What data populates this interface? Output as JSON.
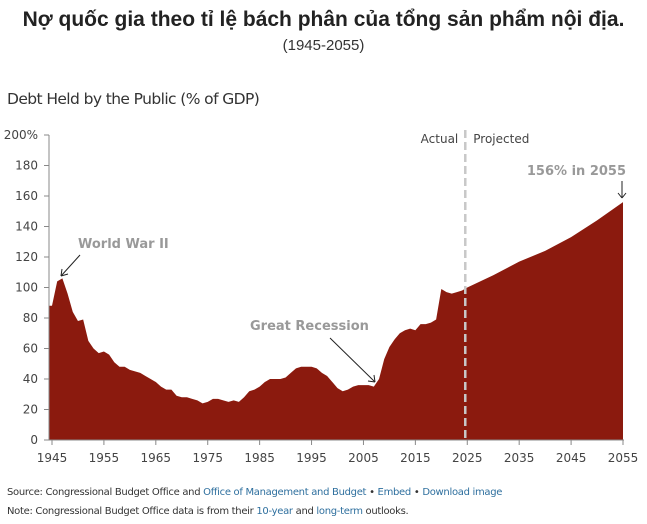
{
  "header": {
    "title": "Nợ quốc gia theo tỉ lệ bách phân của tổng sản phẩm nội địa.",
    "subtitle": "(1945-2055)"
  },
  "chart_data": {
    "type": "area",
    "title": "Debt Held by the Public (% of GDP)",
    "ylim": [
      0,
      200
    ],
    "xlim": [
      1945,
      2055
    ],
    "y_ticks": [
      "0",
      "20",
      "40",
      "60",
      "80",
      "100",
      "120",
      "140",
      "160",
      "180",
      "200%"
    ],
    "x_ticks": [
      "1945",
      "1955",
      "1965",
      "1975",
      "1985",
      "1995",
      "2005",
      "2015",
      "2025",
      "2035",
      "2045",
      "2055"
    ],
    "color": "#8b1a0e",
    "divider": {
      "year": 2025,
      "left_label": "Actual",
      "right_label": "Projected"
    },
    "annotations": [
      {
        "text": "World War II",
        "year": 1946,
        "value": 106
      },
      {
        "text": "Great Recession",
        "year": 2007,
        "value": 35
      },
      {
        "text": "156% in 2055",
        "year": 2055,
        "value": 156
      }
    ],
    "x": [
      1945,
      1946,
      1947,
      1948,
      1949,
      1950,
      1951,
      1952,
      1953,
      1954,
      1955,
      1956,
      1957,
      1958,
      1959,
      1960,
      1961,
      1962,
      1963,
      1964,
      1965,
      1966,
      1967,
      1968,
      1969,
      1970,
      1971,
      1972,
      1973,
      1974,
      1975,
      1976,
      1977,
      1978,
      1979,
      1980,
      1981,
      1982,
      1983,
      1984,
      1985,
      1986,
      1987,
      1988,
      1989,
      1990,
      1991,
      1992,
      1993,
      1994,
      1995,
      1996,
      1997,
      1998,
      1999,
      2000,
      2001,
      2002,
      2003,
      2004,
      2005,
      2006,
      2007,
      2008,
      2009,
      2010,
      2011,
      2012,
      2013,
      2014,
      2015,
      2016,
      2017,
      2018,
      2019,
      2020,
      2021,
      2022,
      2023,
      2024,
      2025,
      2030,
      2035,
      2040,
      2045,
      2050,
      2055
    ],
    "values": [
      88,
      104,
      106,
      96,
      84,
      78,
      79,
      65,
      60,
      57,
      58,
      56,
      51,
      48,
      48,
      46,
      45,
      44,
      42,
      40,
      38,
      35,
      33,
      33,
      29,
      28,
      28,
      27,
      26,
      24,
      25,
      27,
      27,
      26,
      25,
      26,
      25,
      28,
      32,
      33,
      35,
      38,
      40,
      40,
      40,
      41,
      44,
      47,
      48,
      48,
      48,
      47,
      44,
      42,
      38,
      34,
      32,
      33,
      35,
      36,
      36,
      36,
      35,
      40,
      53,
      61,
      66,
      70,
      72,
      73,
      72,
      76,
      76,
      77,
      79,
      99,
      97,
      96,
      97,
      98,
      100,
      108,
      117,
      124,
      133,
      144,
      156
    ]
  },
  "footer": {
    "source_prefix": "Source: Congressional Budget Office and ",
    "source_link": "Office of Management and Budget",
    "sep": " • ",
    "embed": "Embed",
    "download": "Download image",
    "note_prefix": "Note: Congressional Budget Office data is from their ",
    "note_link1": "10-year",
    "note_mid": " and ",
    "note_link2": "long-term",
    "note_suffix": " outlooks."
  }
}
